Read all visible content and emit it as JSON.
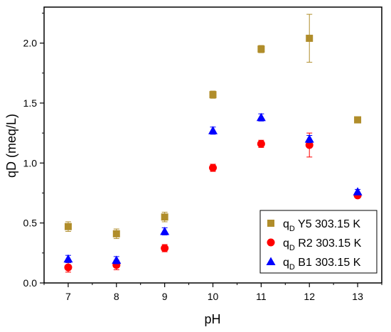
{
  "chart_data": {
    "type": "scatter",
    "xlabel": "pH",
    "ylabel": "qD (meq/L)",
    "xlim": [
      6.5,
      13.5
    ],
    "ylim": [
      0.0,
      2.3
    ],
    "xticks": [
      "7",
      "8",
      "9",
      "10",
      "11",
      "12",
      "13"
    ],
    "yticks": [
      "0.0",
      "0.5",
      "1.0",
      "1.5",
      "2.0"
    ],
    "legend_position": "bottom-right",
    "series": [
      {
        "name_prefix": "q",
        "name_sub": "D",
        "name_rest": " Y5 303.15 K",
        "marker": "square",
        "color": "#B08D2A",
        "x": [
          7,
          8,
          9,
          10,
          11,
          12,
          13
        ],
        "y": [
          0.47,
          0.41,
          0.55,
          1.57,
          1.95,
          2.04,
          1.36
        ],
        "err": [
          0.04,
          0.04,
          0.04,
          0.03,
          0.03,
          0.2,
          0.02
        ]
      },
      {
        "name_prefix": "q",
        "name_sub": "D",
        "name_rest": " R2 303.15 K",
        "marker": "circle",
        "color": "#FF0000",
        "x": [
          7,
          8,
          9,
          10,
          11,
          12,
          13
        ],
        "y": [
          0.13,
          0.15,
          0.29,
          0.96,
          1.16,
          1.15,
          0.73
        ],
        "err": [
          0.04,
          0.04,
          0.03,
          0.03,
          0.03,
          0.1,
          0.02
        ]
      },
      {
        "name_prefix": "q",
        "name_sub": "D",
        "name_rest": " B1 303.15 K",
        "marker": "triangle",
        "color": "#0000FF",
        "x": [
          7,
          8,
          9,
          10,
          11,
          12,
          13
        ],
        "y": [
          0.2,
          0.19,
          0.43,
          1.27,
          1.38,
          1.2,
          0.76
        ],
        "err": [
          0.03,
          0.03,
          0.03,
          0.03,
          0.03,
          0.03,
          0.02
        ]
      }
    ]
  }
}
